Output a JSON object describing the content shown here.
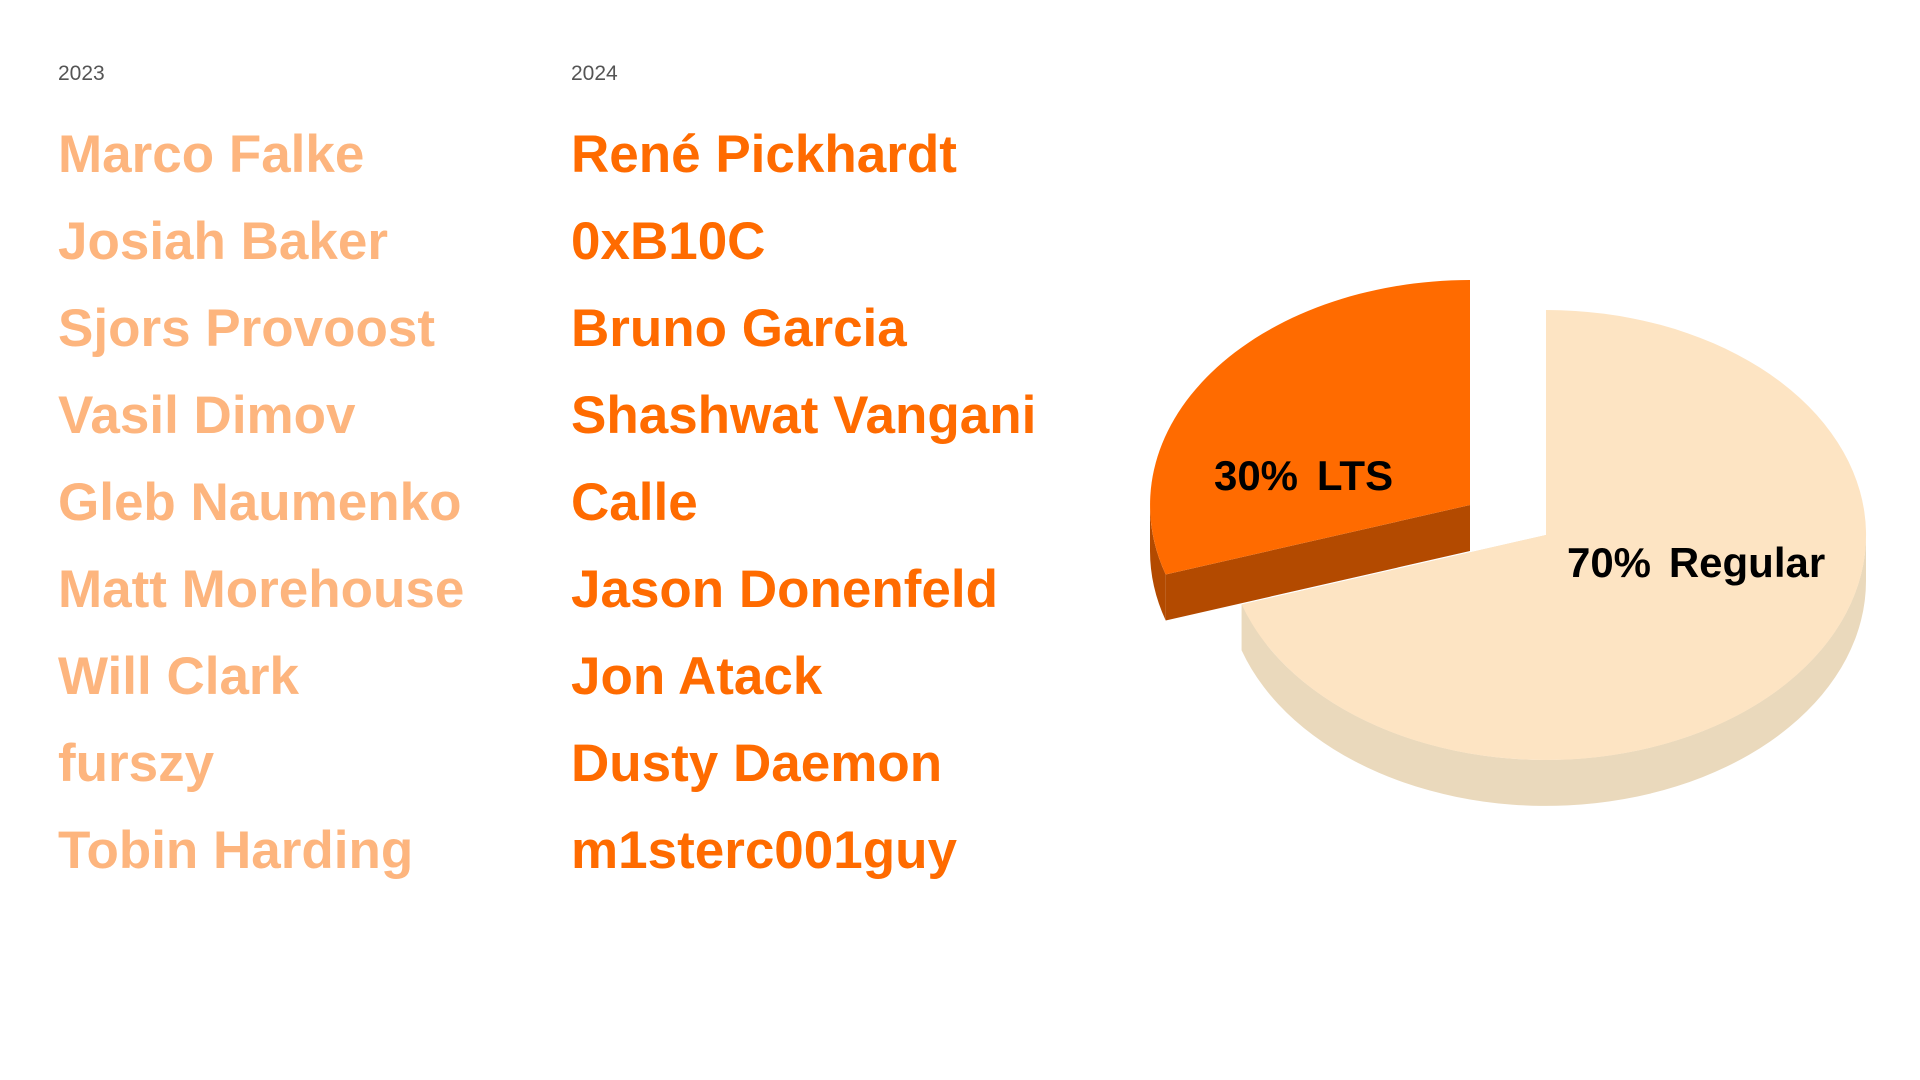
{
  "columns": [
    {
      "title": "2023",
      "names": [
        "Marco Falke",
        "Josiah Baker",
        "Sjors Provoost",
        "Vasil Dimov",
        "Gleb Naumenko",
        "Matt Morehouse",
        "Will Clark",
        "furszy",
        "Tobin Harding"
      ],
      "color": "#FDB57E"
    },
    {
      "title": "2024",
      "names": [
        "René Pickhardt",
        "0xB10C",
        "Bruno Garcia",
        "Shashwat Vangani",
        "Calle",
        "Jason Donenfeld",
        "Jon Atack",
        "Dusty Daemon",
        "m1sterc001guy"
      ],
      "color": "#FF6B00"
    }
  ],
  "chart_data": {
    "type": "pie",
    "categories": [
      "LTS",
      "Regular"
    ],
    "values": [
      30,
      70
    ],
    "value_labels": [
      "30%",
      "70%"
    ],
    "colors": [
      "#FF6B00",
      "#FDE4C3"
    ],
    "side_colors": [
      "#B34A00",
      "#EAD9BC"
    ]
  }
}
